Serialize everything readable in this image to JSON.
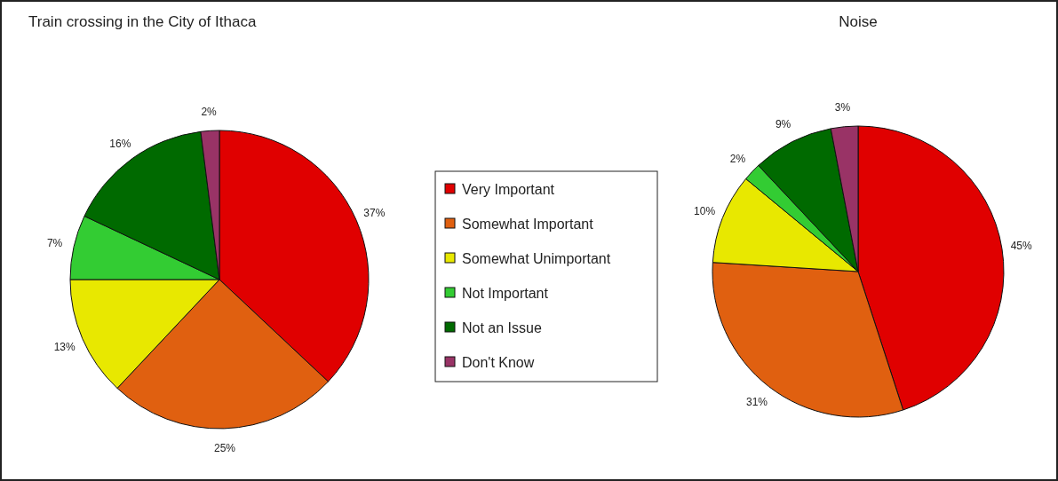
{
  "chart_data": [
    {
      "type": "pie",
      "title": "Train crossing in the City of Ithaca",
      "categories": [
        "Very Important",
        "Somewhat Important",
        "Somewhat Unimportant",
        "Not Important",
        "Not an Issue",
        "Don't Know"
      ],
      "values": [
        37,
        25,
        13,
        7,
        16,
        2
      ],
      "value_labels": [
        "37%",
        "25%",
        "13%",
        "7%",
        "16%",
        "2%"
      ],
      "colors": [
        "#e00000",
        "#e06010",
        "#e8e800",
        "#33cc33",
        "#006a00",
        "#993366"
      ],
      "legend": "right"
    },
    {
      "type": "pie",
      "title": "Noise",
      "categories": [
        null,
        null,
        null,
        null,
        null,
        null
      ],
      "values": [
        45,
        31,
        10,
        2,
        9,
        3
      ],
      "value_labels": [
        "45%",
        "31%",
        "10%",
        "2%",
        "9%",
        "3%"
      ],
      "colors": [
        "#e00000",
        "#e06010",
        "#e8e800",
        "#33cc33",
        "#006a00",
        "#993366"
      ]
    }
  ]
}
